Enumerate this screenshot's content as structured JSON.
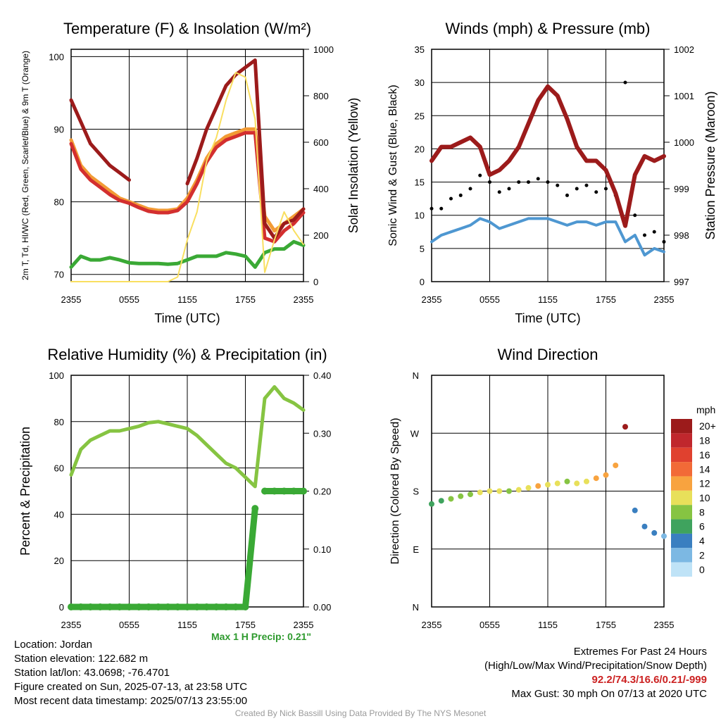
{
  "colors": {
    "temp": "#d32f2f",
    "heat_index": "#f36b3b",
    "feels": "#e53e2e",
    "dewpoint": "#3aa935",
    "temp9m": "#f29b35",
    "insolation": "#f9df60",
    "pressure": "#9c1b1b",
    "wind": "#4e97d1",
    "gust": "#000000",
    "rh": "#86c442",
    "precip": "#3aa935",
    "precip_note": "#2e9a2e",
    "extremes": "#cc2222"
  },
  "chart_data": [
    {
      "type": "line",
      "title": "Temperature (F) & Insolation (W/m²)",
      "xlabel": "Time (UTC)",
      "ylabel_left": "2m T, Td, HI/WC (Red, Green, Scarlet/Blue) & 9m T (Orange)",
      "ylabel_right": "Solar Insolation (Yellow)",
      "x_ticks": [
        "2355",
        "0555",
        "1155",
        "1755",
        "2355"
      ],
      "ylim_left": [
        69,
        101
      ],
      "yticks_left": [
        70,
        80,
        90,
        100
      ],
      "ylim_right": [
        0,
        1000
      ],
      "yticks_right": [
        0,
        200,
        400,
        600,
        800,
        1000
      ],
      "x_hours": [
        0,
        1,
        2,
        3,
        4,
        5,
        6,
        7,
        8,
        9,
        10,
        11,
        12,
        13,
        14,
        15,
        16,
        17,
        18,
        19,
        20,
        21,
        22,
        23,
        24
      ],
      "series": [
        {
          "key": "temp9m",
          "color_key": "temp9m",
          "values": [
            88.5,
            85,
            83.5,
            82.5,
            81.5,
            80.5,
            80,
            79.5,
            79,
            78.8,
            78.8,
            79,
            80.5,
            83,
            86,
            88,
            89,
            89.5,
            90,
            90,
            78,
            76,
            77,
            78,
            79
          ]
        },
        {
          "key": "temp",
          "color_key": "temp",
          "values": [
            88,
            84.5,
            83,
            82,
            81,
            80.2,
            79.8,
            79.2,
            78.7,
            78.5,
            78.5,
            78.8,
            80,
            82.5,
            85.5,
            87.5,
            88.5,
            89,
            89.5,
            89.5,
            75,
            74.5,
            76,
            77,
            78.5
          ]
        },
        {
          "key": "heat_index",
          "color_key": "pressure",
          "values": [
            94,
            91,
            88,
            86.5,
            85,
            84,
            83,
            null,
            null,
            null,
            null,
            null,
            82.5,
            86,
            90,
            93,
            96,
            97.5,
            98.5,
            99.5,
            77,
            75,
            77,
            77.5,
            79
          ]
        },
        {
          "key": "dewpoint",
          "color_key": "dewpoint",
          "values": [
            71,
            72.5,
            72,
            72,
            72.3,
            72,
            71.6,
            71.5,
            71.5,
            71.5,
            71.4,
            71.5,
            72,
            72.5,
            72.5,
            72.5,
            73,
            72.8,
            72.5,
            71,
            73,
            73.5,
            73.5,
            74.5,
            74
          ]
        },
        {
          "key": "insolation",
          "color_key": "insolation",
          "axis": "right",
          "values": [
            0,
            0,
            0,
            0,
            0,
            0,
            0,
            0,
            0,
            0,
            0,
            20,
            180,
            300,
            520,
            620,
            780,
            900,
            880,
            700,
            40,
            180,
            300,
            220,
            160
          ]
        }
      ]
    },
    {
      "type": "line",
      "title": "Winds (mph) & Pressure (mb)",
      "xlabel": "Time (UTC)",
      "ylabel_left": "Sonic Wind & Gust (Blue, Black)",
      "ylabel_right": "Station Pressure (Maroon)",
      "x_ticks": [
        "2355",
        "0555",
        "1155",
        "1755",
        "2355"
      ],
      "ylim_left": [
        0,
        35
      ],
      "yticks_left": [
        0,
        5,
        10,
        15,
        20,
        25,
        30,
        35
      ],
      "ylim_right": [
        997,
        1002
      ],
      "yticks_right": [
        997,
        998,
        999,
        1000,
        1001,
        1002
      ],
      "x_hours": [
        0,
        1,
        2,
        3,
        4,
        5,
        6,
        7,
        8,
        9,
        10,
        11,
        12,
        13,
        14,
        15,
        16,
        17,
        18,
        19,
        20,
        21,
        22,
        23,
        24
      ],
      "series": [
        {
          "key": "wind",
          "color_key": "wind",
          "values": [
            6,
            7,
            7.5,
            8,
            8.5,
            9.5,
            9,
            8,
            8.5,
            9,
            9.5,
            9.5,
            9.5,
            9,
            8.5,
            9,
            9,
            8.5,
            9,
            9,
            6,
            7,
            4,
            5,
            4.5
          ]
        },
        {
          "key": "gust",
          "color_key": "gust",
          "style": "dots",
          "values": [
            11,
            11,
            12.5,
            13,
            14,
            16,
            15,
            13.5,
            14,
            15,
            15,
            15.5,
            15,
            14.5,
            13,
            14,
            14.5,
            13.5,
            14,
            13,
            30,
            10,
            7,
            7.5,
            6
          ]
        },
        {
          "key": "pressure",
          "color_key": "pressure",
          "axis": "right",
          "values": [
            999.6,
            999.9,
            999.9,
            1000.0,
            1000.1,
            999.9,
            999.3,
            999.4,
            999.6,
            999.9,
            1000.4,
            1000.9,
            1001.2,
            1001.0,
            1000.5,
            999.9,
            999.6,
            999.6,
            999.4,
            998.9,
            998.2,
            999.3,
            999.7,
            999.6,
            999.7
          ]
        }
      ]
    },
    {
      "type": "line",
      "title": "Relative Humidity (%) & Precipitation (in)",
      "xlabel": "",
      "ylabel_left": "Percent & Precipitation",
      "x_ticks": [
        "2355",
        "0555",
        "1155",
        "1755",
        "2355"
      ],
      "ylim_left": [
        0,
        100
      ],
      "yticks_left": [
        0,
        20,
        40,
        60,
        80,
        100
      ],
      "ylim_right": [
        0,
        0.4
      ],
      "yticks_right": [
        "0.00",
        "0.10",
        "0.20",
        "0.30",
        "0.40"
      ],
      "x_hours": [
        0,
        1,
        2,
        3,
        4,
        5,
        6,
        7,
        8,
        9,
        10,
        11,
        12,
        13,
        14,
        15,
        16,
        17,
        18,
        19,
        20,
        21,
        22,
        23,
        24
      ],
      "series": [
        {
          "key": "rh",
          "color_key": "rh",
          "values": [
            57,
            68,
            72,
            74,
            76,
            76,
            77,
            78,
            79.5,
            80,
            79,
            78,
            77,
            74,
            70,
            66,
            62,
            60,
            56,
            52,
            90,
            95,
            90,
            88,
            85
          ]
        },
        {
          "key": "precip",
          "color_key": "precip",
          "axis": "right",
          "style": "dots",
          "values": [
            0,
            0,
            0,
            0,
            0,
            0,
            0,
            0,
            0,
            0,
            0,
            0,
            0,
            0,
            0,
            0,
            0,
            0,
            0,
            0.17,
            0.2,
            0.2,
            0.2,
            0.2,
            0.2
          ]
        }
      ]
    },
    {
      "type": "scatter",
      "title": "Wind Direction",
      "ylabel_left": "Direction (Colored By Speed)",
      "x_ticks": [
        "2355",
        "0555",
        "1155",
        "1755",
        "2355"
      ],
      "y_ticks": [
        "N",
        "E",
        "S",
        "W",
        "N"
      ],
      "y_tick_degrees": [
        0,
        90,
        180,
        270,
        360
      ],
      "ylim": [
        0,
        360
      ],
      "colorbar_title": "mph",
      "colorbar_labels": [
        "20+",
        "18",
        "16",
        "14",
        "12",
        "10",
        "8",
        "6",
        "4",
        "2",
        "0"
      ],
      "colorbar_colors": [
        "#9c1b1b",
        "#c0272d",
        "#e0412f",
        "#f26a37",
        "#f8a33f",
        "#e8e05a",
        "#86c442",
        "#3fa35e",
        "#3a7fc0",
        "#7cb8e3",
        "#bfe3f7"
      ],
      "x_hours": [
        0,
        1,
        2,
        3,
        4,
        5,
        6,
        7,
        8,
        9,
        10,
        11,
        12,
        13,
        14,
        15,
        16,
        17,
        18,
        19,
        20,
        21,
        22,
        23,
        24
      ],
      "directions": [
        160,
        165,
        168,
        172,
        175,
        178,
        180,
        180,
        180,
        182,
        185,
        188,
        190,
        192,
        195,
        192,
        195,
        200,
        205,
        220,
        280,
        150,
        125,
        115,
        110
      ],
      "speeds": [
        6,
        6,
        7,
        7,
        8,
        9,
        10,
        9,
        8,
        9,
        10,
        11,
        9,
        9,
        8,
        9,
        10,
        11,
        12,
        12,
        20,
        4,
        3,
        3,
        2
      ]
    }
  ],
  "footer": {
    "location": "Location: Jordan",
    "elevation": "Station elevation: 122.682 m",
    "latlon": "Station lat/lon: 43.0698; -76.4701",
    "created": "Figure created on Sun, 2025-07-13, at 23:58 UTC",
    "recent": "Most recent data timestamp: 2025/07/13 23:55:00",
    "precip_note": "Max 1 H Precip: 0.21\"",
    "extremes_title": "Extremes For Past 24 Hours",
    "extremes_legend": "(High/Low/Max Wind/Precipitation/Snow Depth)",
    "extremes_values": "92.2/74.3/16.6/0.21/-999",
    "max_gust": "Max Gust: 30 mph On 07/13 at 2020 UTC",
    "credit": "Created By Nick Bassill Using Data Provided By The NYS Mesonet"
  }
}
